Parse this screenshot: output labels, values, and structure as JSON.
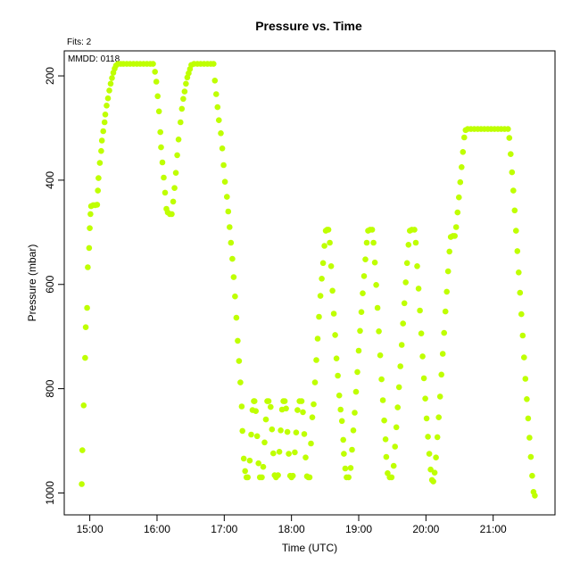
{
  "chart_data": {
    "type": "scatter",
    "title": "Pressure  vs. Time",
    "annotations": {
      "fits": "Fits: 2",
      "mmdd": "MMDD: 0118"
    },
    "xlabel": "Time (UTC)",
    "ylabel": "Pressure (mbar)",
    "x_unit": "hours UTC",
    "xlim": [
      14.62,
      21.92
    ],
    "ylim": [
      1042,
      152
    ],
    "y_reversed": true,
    "x_ticks": [
      {
        "value": 15,
        "label": "15:00"
      },
      {
        "value": 16,
        "label": "16:00"
      },
      {
        "value": 17,
        "label": "17:00"
      },
      {
        "value": 18,
        "label": "18:00"
      },
      {
        "value": 19,
        "label": "19:00"
      },
      {
        "value": 20,
        "label": "20:00"
      },
      {
        "value": 21,
        "label": "21:00"
      }
    ],
    "y_ticks": [
      {
        "value": 200,
        "label": "200"
      },
      {
        "value": 400,
        "label": "400"
      },
      {
        "value": 600,
        "label": "600"
      },
      {
        "value": 800,
        "label": "800"
      },
      {
        "value": 1000,
        "label": "1000"
      }
    ],
    "grid": false,
    "marker_color": "#bfff00",
    "series": [
      {
        "points": [
          [
            14.88,
            983
          ],
          [
            14.89,
            918
          ],
          [
            14.91,
            832
          ],
          [
            14.93,
            741
          ],
          [
            14.94,
            682
          ],
          [
            14.96,
            645
          ],
          [
            14.97,
            567
          ],
          [
            14.99,
            530
          ],
          [
            15.0,
            492
          ],
          [
            15.01,
            465
          ],
          [
            15.02,
            450
          ],
          [
            15.05,
            448
          ],
          [
            15.08,
            448
          ],
          [
            15.11,
            447
          ],
          [
            15.12,
            420
          ],
          [
            15.13,
            396
          ],
          [
            15.15,
            367
          ],
          [
            15.17,
            344
          ],
          [
            15.18,
            324
          ],
          [
            15.2,
            306
          ],
          [
            15.22,
            289
          ],
          [
            15.23,
            274
          ],
          [
            15.25,
            257
          ],
          [
            15.27,
            243
          ],
          [
            15.29,
            228
          ],
          [
            15.31,
            215
          ],
          [
            15.33,
            204
          ],
          [
            15.35,
            194
          ],
          [
            15.37,
            186
          ],
          [
            15.39,
            180
          ],
          [
            15.42,
            177
          ],
          [
            15.46,
            177
          ],
          [
            15.5,
            177
          ],
          [
            15.55,
            177
          ],
          [
            15.6,
            177
          ],
          [
            15.65,
            177
          ],
          [
            15.7,
            177
          ],
          [
            15.75,
            177
          ],
          [
            15.8,
            177
          ],
          [
            15.85,
            177
          ],
          [
            15.9,
            177
          ],
          [
            15.94,
            177
          ],
          [
            15.97,
            192
          ],
          [
            15.99,
            211
          ],
          [
            16.01,
            239
          ],
          [
            16.03,
            268
          ],
          [
            16.05,
            308
          ],
          [
            16.06,
            337
          ],
          [
            16.08,
            366
          ],
          [
            16.1,
            395
          ],
          [
            16.12,
            424
          ],
          [
            16.14,
            455
          ],
          [
            16.16,
            462
          ],
          [
            16.19,
            465
          ],
          [
            16.22,
            465
          ],
          [
            16.24,
            441
          ],
          [
            16.26,
            415
          ],
          [
            16.28,
            386
          ],
          [
            16.3,
            352
          ],
          [
            16.32,
            322
          ],
          [
            16.35,
            289
          ],
          [
            16.37,
            263
          ],
          [
            16.39,
            244
          ],
          [
            16.41,
            230
          ],
          [
            16.43,
            215
          ],
          [
            16.45,
            203
          ],
          [
            16.47,
            195
          ],
          [
            16.49,
            187
          ],
          [
            16.51,
            179
          ],
          [
            16.55,
            177
          ],
          [
            16.6,
            177
          ],
          [
            16.65,
            177
          ],
          [
            16.7,
            177
          ],
          [
            16.75,
            177
          ],
          [
            16.8,
            177
          ],
          [
            16.84,
            177
          ],
          [
            16.86,
            209
          ],
          [
            16.88,
            235
          ],
          [
            16.9,
            260
          ],
          [
            16.92,
            285
          ],
          [
            16.95,
            310
          ],
          [
            16.97,
            339
          ],
          [
            16.99,
            371
          ],
          [
            17.01,
            403
          ],
          [
            17.04,
            432
          ],
          [
            17.06,
            460
          ],
          [
            17.08,
            490
          ],
          [
            17.1,
            520
          ],
          [
            17.12,
            551
          ],
          [
            17.14,
            586
          ],
          [
            17.16,
            623
          ],
          [
            17.18,
            664
          ],
          [
            17.2,
            708
          ],
          [
            17.22,
            747
          ],
          [
            17.24,
            788
          ],
          [
            17.26,
            834
          ],
          [
            17.27,
            881
          ],
          [
            17.29,
            934
          ],
          [
            17.31,
            958
          ],
          [
            17.33,
            970
          ],
          [
            17.35,
            970
          ],
          [
            17.38,
            938
          ],
          [
            17.4,
            888
          ],
          [
            17.42,
            841
          ],
          [
            17.44,
            824
          ],
          [
            17.45,
            824
          ],
          [
            17.47,
            843
          ],
          [
            17.49,
            891
          ],
          [
            17.51,
            943
          ],
          [
            17.53,
            970
          ],
          [
            17.56,
            970
          ],
          [
            17.58,
            950
          ],
          [
            17.6,
            903
          ],
          [
            17.62,
            859
          ],
          [
            17.64,
            824
          ],
          [
            17.66,
            824
          ],
          [
            17.69,
            835
          ],
          [
            17.71,
            878
          ],
          [
            17.73,
            924
          ],
          [
            17.75,
            966
          ],
          [
            17.77,
            970
          ],
          [
            17.8,
            966
          ],
          [
            17.82,
            921
          ],
          [
            17.84,
            880
          ],
          [
            17.86,
            840
          ],
          [
            17.88,
            824
          ],
          [
            17.9,
            824
          ],
          [
            17.92,
            838
          ],
          [
            17.94,
            883
          ],
          [
            17.96,
            925
          ],
          [
            17.98,
            967
          ],
          [
            18.0,
            970
          ],
          [
            18.02,
            967
          ],
          [
            18.05,
            922
          ],
          [
            18.07,
            884
          ],
          [
            18.09,
            841
          ],
          [
            18.12,
            824
          ],
          [
            18.15,
            824
          ],
          [
            18.17,
            845
          ],
          [
            18.19,
            887
          ],
          [
            18.21,
            932
          ],
          [
            18.23,
            968
          ],
          [
            18.25,
            970
          ],
          [
            18.27,
            970
          ],
          [
            18.29,
            905
          ],
          [
            18.31,
            855
          ],
          [
            18.33,
            830
          ],
          [
            18.35,
            788
          ],
          [
            18.37,
            745
          ],
          [
            18.39,
            704
          ],
          [
            18.41,
            662
          ],
          [
            18.43,
            622
          ],
          [
            18.45,
            589
          ],
          [
            18.47,
            559
          ],
          [
            18.49,
            526
          ],
          [
            18.51,
            497
          ],
          [
            18.53,
            495
          ],
          [
            18.55,
            495
          ],
          [
            18.57,
            520
          ],
          [
            18.59,
            565
          ],
          [
            18.61,
            612
          ],
          [
            18.63,
            656
          ],
          [
            18.65,
            697
          ],
          [
            18.67,
            742
          ],
          [
            18.69,
            775
          ],
          [
            18.71,
            813
          ],
          [
            18.73,
            840
          ],
          [
            18.75,
            862
          ],
          [
            18.77,
            898
          ],
          [
            18.78,
            925
          ],
          [
            18.8,
            953
          ],
          [
            18.82,
            970
          ],
          [
            18.85,
            970
          ],
          [
            18.88,
            952
          ],
          [
            18.9,
            917
          ],
          [
            18.92,
            880
          ],
          [
            18.94,
            846
          ],
          [
            18.96,
            806
          ],
          [
            18.98,
            768
          ],
          [
            19.0,
            727
          ],
          [
            19.02,
            689
          ],
          [
            19.04,
            653
          ],
          [
            19.06,
            617
          ],
          [
            19.08,
            584
          ],
          [
            19.1,
            552
          ],
          [
            19.12,
            520
          ],
          [
            19.14,
            497
          ],
          [
            19.17,
            495
          ],
          [
            19.2,
            495
          ],
          [
            19.22,
            520
          ],
          [
            19.24,
            558
          ],
          [
            19.26,
            601
          ],
          [
            19.28,
            645
          ],
          [
            19.3,
            690
          ],
          [
            19.32,
            736
          ],
          [
            19.34,
            782
          ],
          [
            19.36,
            822
          ],
          [
            19.38,
            861
          ],
          [
            19.4,
            897
          ],
          [
            19.41,
            931
          ],
          [
            19.43,
            962
          ],
          [
            19.46,
            970
          ],
          [
            19.49,
            970
          ],
          [
            19.52,
            948
          ],
          [
            19.54,
            911
          ],
          [
            19.56,
            874
          ],
          [
            19.58,
            836
          ],
          [
            19.6,
            797
          ],
          [
            19.62,
            757
          ],
          [
            19.64,
            716
          ],
          [
            19.66,
            675
          ],
          [
            19.68,
            636
          ],
          [
            19.7,
            596
          ],
          [
            19.72,
            559
          ],
          [
            19.74,
            524
          ],
          [
            19.76,
            497
          ],
          [
            19.79,
            495
          ],
          [
            19.83,
            495
          ],
          [
            19.85,
            520
          ],
          [
            19.87,
            565
          ],
          [
            19.89,
            608
          ],
          [
            19.91,
            650
          ],
          [
            19.93,
            694
          ],
          [
            19.95,
            738
          ],
          [
            19.97,
            780
          ],
          [
            19.99,
            819
          ],
          [
            20.01,
            857
          ],
          [
            20.03,
            892
          ],
          [
            20.05,
            925
          ],
          [
            20.07,
            955
          ],
          [
            20.09,
            975
          ],
          [
            20.11,
            978
          ],
          [
            20.13,
            961
          ],
          [
            20.15,
            932
          ],
          [
            20.17,
            893
          ],
          [
            20.19,
            855
          ],
          [
            20.21,
            815
          ],
          [
            20.23,
            773
          ],
          [
            20.25,
            733
          ],
          [
            20.27,
            693
          ],
          [
            20.29,
            652
          ],
          [
            20.31,
            614
          ],
          [
            20.33,
            575
          ],
          [
            20.35,
            537
          ],
          [
            20.37,
            509
          ],
          [
            20.4,
            507
          ],
          [
            20.43,
            507
          ],
          [
            20.45,
            490
          ],
          [
            20.47,
            462
          ],
          [
            20.49,
            433
          ],
          [
            20.51,
            404
          ],
          [
            20.53,
            375
          ],
          [
            20.55,
            346
          ],
          [
            20.57,
            318
          ],
          [
            20.59,
            304
          ],
          [
            20.62,
            302
          ],
          [
            20.67,
            302
          ],
          [
            20.72,
            302
          ],
          [
            20.77,
            302
          ],
          [
            20.82,
            302
          ],
          [
            20.87,
            302
          ],
          [
            20.92,
            302
          ],
          [
            20.97,
            302
          ],
          [
            21.02,
            302
          ],
          [
            21.07,
            302
          ],
          [
            21.12,
            302
          ],
          [
            21.17,
            302
          ],
          [
            21.22,
            302
          ],
          [
            21.24,
            319
          ],
          [
            21.26,
            350
          ],
          [
            21.28,
            385
          ],
          [
            21.3,
            420
          ],
          [
            21.32,
            458
          ],
          [
            21.34,
            497
          ],
          [
            21.36,
            536
          ],
          [
            21.38,
            577
          ],
          [
            21.4,
            616
          ],
          [
            21.42,
            657
          ],
          [
            21.44,
            698
          ],
          [
            21.46,
            740
          ],
          [
            21.48,
            781
          ],
          [
            21.5,
            820
          ],
          [
            21.52,
            857
          ],
          [
            21.54,
            894
          ],
          [
            21.56,
            931
          ],
          [
            21.58,
            967
          ],
          [
            21.6,
            998
          ],
          [
            21.62,
            1005
          ]
        ]
      }
    ]
  }
}
